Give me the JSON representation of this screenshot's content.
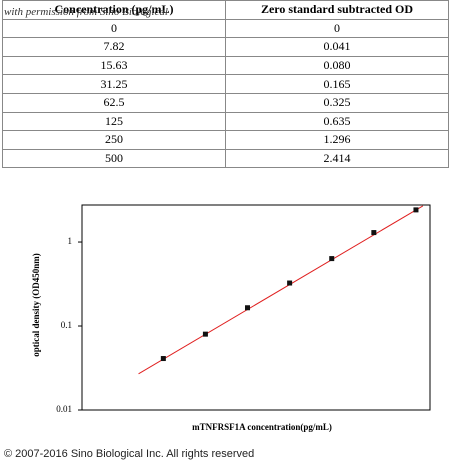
{
  "table": {
    "header": [
      "Concentration (pg/mL)",
      "Zero standard subtracted OD"
    ],
    "rows": [
      [
        "0",
        "0"
      ],
      [
        "7.82",
        "0.041"
      ],
      [
        "15.63",
        "0.080"
      ],
      [
        "31.25",
        "0.165"
      ],
      [
        "62.5",
        "0.325"
      ],
      [
        "125",
        "0.635"
      ],
      [
        "250",
        "1.296"
      ],
      [
        "500",
        "2.414"
      ]
    ]
  },
  "watermark": "with permission from Sino Biological",
  "chart_data": {
    "type": "scatter",
    "x_label": "mTNFRSF1A  concentration(pg/mL)",
    "y_label": "optical density (OD450nm)",
    "x": [
      7.82,
      15.63,
      31.25,
      62.5,
      125,
      250,
      500
    ],
    "series": [
      {
        "color": "#111111",
        "values": [
          0.041,
          0.08,
          0.165,
          0.325,
          0.635,
          1.296,
          2.414
        ]
      }
    ],
    "fit_line": {
      "color": "#e02020",
      "x": [
        5.2,
        560
      ],
      "values": [
        0.027,
        2.69
      ]
    },
    "xlim": [
      2.05,
      630
    ],
    "ylim": [
      0.01,
      2.76
    ],
    "x_log": true,
    "y_log": true,
    "yticks": [
      0.01,
      0.1,
      1
    ]
  },
  "footer": "© 2007-2016 Sino Biological Inc. All rights reserved"
}
